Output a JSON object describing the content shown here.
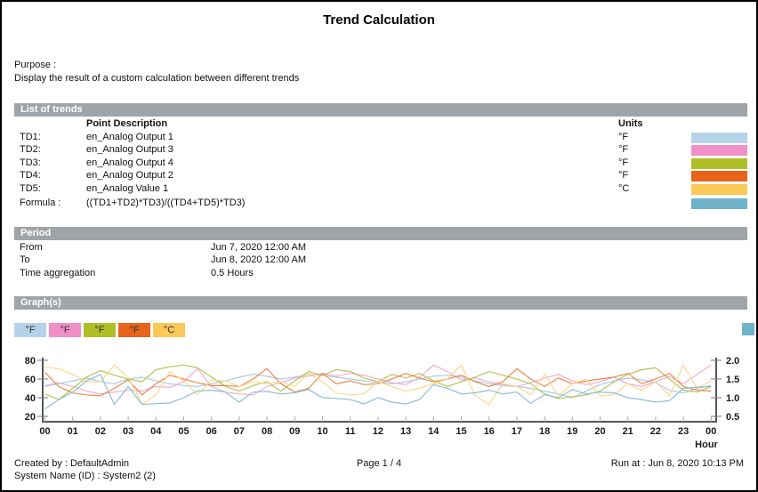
{
  "title": "Trend Calculation",
  "purpose": {
    "label": "Purpose :",
    "text": "Display the result of a custom calculation between different trends"
  },
  "sections": {
    "trends": "List of trends",
    "period": "Period",
    "graphs": "Graph(s)"
  },
  "trends": {
    "col_description": "Point Description",
    "col_units": "Units",
    "rows": [
      {
        "label": "TD1:",
        "description": "en_Analog Output 1",
        "units": "°F",
        "color": "#b5d3e8"
      },
      {
        "label": "TD2:",
        "description": "en_Analog Output 3",
        "units": "°F",
        "color": "#f090c7"
      },
      {
        "label": "TD3:",
        "description": "en_Analog Output 4",
        "units": "°F",
        "color": "#b1bf26"
      },
      {
        "label": "TD4:",
        "description": "en_Analog Output 2",
        "units": "°F",
        "color": "#e8631c"
      },
      {
        "label": "TD5:",
        "description": "en_Analog Value 1",
        "units": "°C",
        "color": "#fcc857"
      }
    ],
    "formula": {
      "label": "Formula :",
      "expression": "((TD1+TD2)*TD3)/((TD4+TD5)*TD3)",
      "color": "#6db3c9"
    }
  },
  "period": {
    "rows": [
      {
        "label": "From",
        "value": "Jun 7, 2020 12:00 AM"
      },
      {
        "label": "To",
        "value": "Jun 8, 2020 12:00 AM"
      },
      {
        "label": "Time aggregation",
        "value": "0.5 Hours"
      }
    ]
  },
  "legend": {
    "items": [
      {
        "label": "°F",
        "color": "#b5d3e8"
      },
      {
        "label": "°F",
        "color": "#f090c7"
      },
      {
        "label": "°F",
        "color": "#b1bf26"
      },
      {
        "label": "°F",
        "color": "#e8631c"
      },
      {
        "label": "°C",
        "color": "#fcc857"
      }
    ],
    "formula_color": "#6db3c9"
  },
  "chart_data": {
    "type": "line",
    "xlabel": "Hour",
    "x_start_hour": 0,
    "x_end_hour": 24,
    "x_step_hours": 0.5,
    "x_ticks": [
      "00",
      "01",
      "02",
      "03",
      "04",
      "05",
      "06",
      "07",
      "08",
      "09",
      "10",
      "11",
      "12",
      "13",
      "14",
      "15",
      "16",
      "17",
      "18",
      "19",
      "20",
      "21",
      "22",
      "23",
      "00"
    ],
    "left_axis": {
      "ticks": [
        80,
        60,
        40,
        20
      ],
      "range": [
        20,
        80
      ]
    },
    "right_axis": {
      "ticks": [
        2.0,
        1.5,
        1.0,
        0.5
      ],
      "range": [
        0.5,
        2.0
      ]
    },
    "grid": false,
    "legend_position": "top-left",
    "series": [
      {
        "name": "TD1 en_Analog Output 1 (°F)",
        "axis": "left",
        "color": "#a9cde3",
        "values": [
          52,
          55,
          58,
          61,
          57,
          55,
          60,
          62,
          58,
          55,
          53,
          52,
          55,
          58,
          62,
          65,
          63,
          60,
          62,
          65,
          64,
          62,
          60,
          58,
          56,
          55,
          57,
          60,
          63,
          64,
          62,
          58,
          55,
          53,
          52,
          50,
          47,
          44,
          40,
          47,
          54,
          58,
          61,
          59,
          56,
          48,
          45,
          50,
          53
        ]
      },
      {
        "name": "TD2 en_Analog Output 3 (°F)",
        "axis": "left",
        "color": "#f4aad4",
        "values": [
          53,
          56,
          52,
          47,
          44,
          46,
          48,
          47,
          52,
          51,
          57,
          71,
          52,
          46,
          44,
          43,
          52,
          56,
          61,
          63,
          66,
          63,
          66,
          64,
          60,
          56,
          54,
          62,
          75,
          68,
          59,
          61,
          57,
          54,
          52,
          56,
          61,
          65,
          58,
          54,
          57,
          62,
          55,
          52,
          57,
          63,
          55,
          65,
          75
        ]
      },
      {
        "name": "TD3 en_Analog Output 4 (°F)",
        "axis": "left",
        "color": "#b8c454",
        "values": [
          44,
          38,
          50,
          62,
          69,
          64,
          60,
          57,
          70,
          73,
          75,
          72,
          62,
          52,
          47,
          53,
          57,
          47,
          58,
          68,
          64,
          70,
          68,
          61,
          57,
          65,
          61,
          66,
          58,
          52,
          57,
          62,
          68,
          64,
          60,
          55,
          44,
          39,
          41,
          43,
          47,
          57,
          65,
          70,
          72,
          60,
          48,
          46,
          52
        ]
      },
      {
        "name": "TD4 en_Analog Output 2 (°F)",
        "axis": "left",
        "color": "#e98a4e",
        "values": [
          67,
          52,
          45,
          43,
          42,
          50,
          59,
          43,
          55,
          64,
          60,
          56,
          53,
          53,
          52,
          60,
          71,
          55,
          46,
          50,
          66,
          55,
          58,
          54,
          55,
          60,
          66,
          61,
          57,
          60,
          64,
          57,
          52,
          57,
          71,
          60,
          52,
          61,
          55,
          58,
          60,
          62,
          66,
          55,
          60,
          66,
          52,
          48,
          47
        ]
      },
      {
        "name": "TD5 en_Analog Value 1 (°C)",
        "axis": "left",
        "color": "#fad98c",
        "values": [
          73,
          71,
          65,
          57,
          57,
          75,
          62,
          33,
          43,
          68,
          58,
          43,
          59,
          58,
          52,
          57,
          55,
          57,
          52,
          66,
          57,
          45,
          43,
          44,
          57,
          52,
          47,
          50,
          55,
          60,
          75,
          42,
          33,
          55,
          52,
          43,
          65,
          42,
          55,
          60,
          42,
          43,
          55,
          48,
          57,
          42,
          75,
          50,
          58
        ]
      },
      {
        "name": "Formula ((TD1+TD2)*TD3)/((TD4+TD5)*TD3)",
        "axis": "right",
        "color": "#8cc0d0",
        "values": [
          0.7,
          0.95,
          1.15,
          1.45,
          1.62,
          0.82,
          1.3,
          0.82,
          0.84,
          0.86,
          1.0,
          1.18,
          1.2,
          1.15,
          0.88,
          1.15,
          1.17,
          1.1,
          1.13,
          1.22,
          1.0,
          0.98,
          0.95,
          0.83,
          1.0,
          0.88,
          0.83,
          0.95,
          1.35,
          1.25,
          1.1,
          1.13,
          1.2,
          1.1,
          1.15,
          0.85,
          1.08,
          1.0,
          1.22,
          1.1,
          1.15,
          1.13,
          1.0,
          0.95,
          0.88,
          0.92,
          1.25,
          1.28,
          1.3
        ]
      }
    ]
  },
  "footer": {
    "created_by": "Created by : DefaultAdmin",
    "system_name": "System Name (ID) : System2 (2)",
    "page": "Page  1 / 4",
    "run_at": "Run at : Jun 8, 2020 10:13 PM"
  }
}
